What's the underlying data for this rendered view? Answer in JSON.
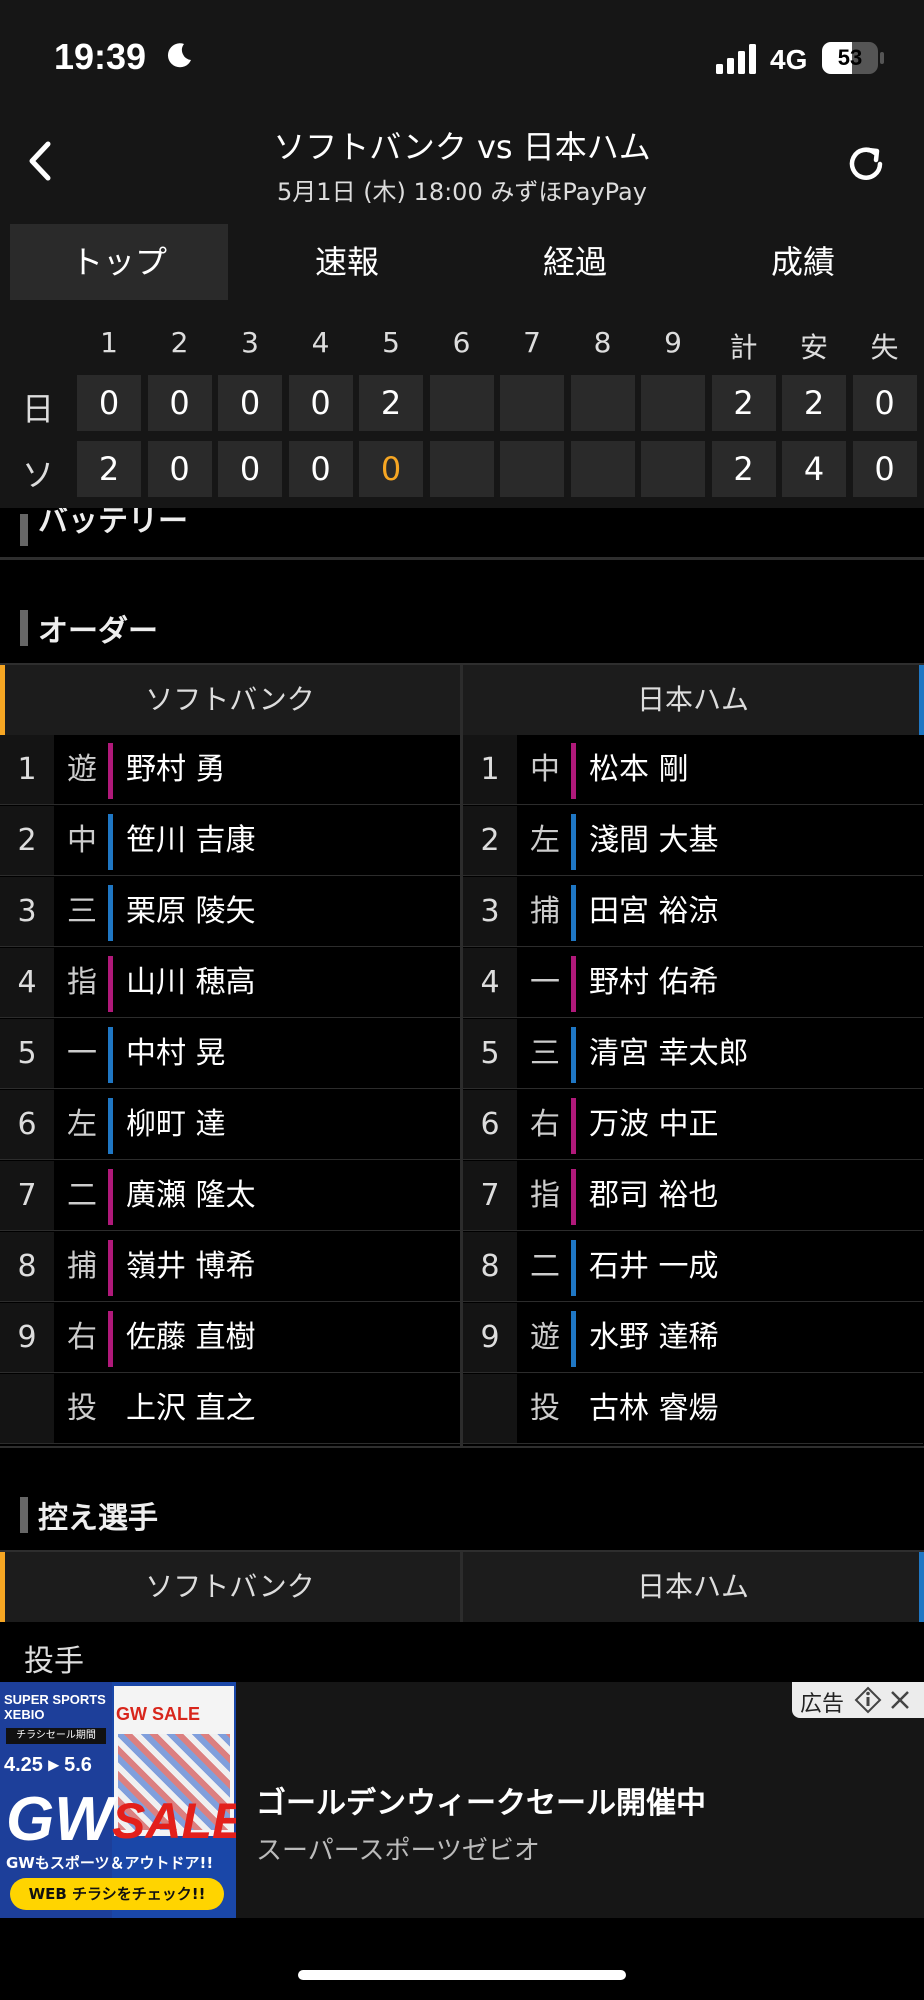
{
  "status": {
    "time": "19:39",
    "network": "4G",
    "battery": "53",
    "battery_level": 0.53
  },
  "header": {
    "title": "ソフトバンク vs 日本ハム",
    "subtitle": "5月1日 (木) 18:00 みずほPayPay"
  },
  "tabs": [
    "トップ",
    "速報",
    "経過",
    "成績"
  ],
  "scoreboard": {
    "columns": [
      "1",
      "2",
      "3",
      "4",
      "5",
      "6",
      "7",
      "8",
      "9",
      "計",
      "安",
      "失"
    ],
    "rows": [
      {
        "team": "日",
        "cells": [
          "0",
          "0",
          "0",
          "0",
          "2",
          "",
          "",
          "",
          "",
          "2",
          "2",
          "0"
        ]
      },
      {
        "team": "ソ",
        "cells": [
          "2",
          "0",
          "0",
          "0",
          "0",
          "",
          "",
          "",
          "",
          "2",
          "4",
          "0"
        ]
      }
    ]
  },
  "sections": {
    "battery": "バッテリー",
    "order": "オーダー",
    "reserves": "控え選手"
  },
  "teams": {
    "home": "ソフトバンク",
    "away": "日本ハム"
  },
  "lineup": {
    "home": [
      {
        "num": "1",
        "pos": "遊",
        "name": "野村 勇",
        "hand": "R"
      },
      {
        "num": "2",
        "pos": "中",
        "name": "笹川 吉康",
        "hand": "L"
      },
      {
        "num": "3",
        "pos": "三",
        "name": "栗原 陵矢",
        "hand": "L"
      },
      {
        "num": "4",
        "pos": "指",
        "name": "山川 穂高",
        "hand": "R"
      },
      {
        "num": "5",
        "pos": "一",
        "name": "中村 晃",
        "hand": "L"
      },
      {
        "num": "6",
        "pos": "左",
        "name": "柳町 達",
        "hand": "L"
      },
      {
        "num": "7",
        "pos": "二",
        "name": "廣瀬 隆太",
        "hand": "R"
      },
      {
        "num": "8",
        "pos": "捕",
        "name": "嶺井 博希",
        "hand": "R"
      },
      {
        "num": "9",
        "pos": "右",
        "name": "佐藤 直樹",
        "hand": "R"
      },
      {
        "num": "",
        "pos": "投",
        "name": "上沢 直之",
        "hand": ""
      }
    ],
    "away": [
      {
        "num": "1",
        "pos": "中",
        "name": "松本 剛",
        "hand": "R"
      },
      {
        "num": "2",
        "pos": "左",
        "name": "淺間 大基",
        "hand": "L"
      },
      {
        "num": "3",
        "pos": "捕",
        "name": "田宮 裕涼",
        "hand": "L"
      },
      {
        "num": "4",
        "pos": "一",
        "name": "野村 佑希",
        "hand": "R"
      },
      {
        "num": "5",
        "pos": "三",
        "name": "清宮 幸太郎",
        "hand": "L"
      },
      {
        "num": "6",
        "pos": "右",
        "name": "万波 中正",
        "hand": "R"
      },
      {
        "num": "7",
        "pos": "指",
        "name": "郡司 裕也",
        "hand": "R"
      },
      {
        "num": "8",
        "pos": "二",
        "name": "石井 一成",
        "hand": "L"
      },
      {
        "num": "9",
        "pos": "遊",
        "name": "水野 達稀",
        "hand": "L"
      },
      {
        "num": "",
        "pos": "投",
        "name": "古林 睿煬",
        "hand": ""
      }
    ]
  },
  "reserves": {
    "subheading": "投手"
  },
  "ad": {
    "label": "広告",
    "title": "ゴールデンウィークセール開催中",
    "sponsor": "スーパースポーツゼビオ",
    "image_texts": {
      "brand": "SUPER SPORTS XEBIO",
      "flyer": "チラシセール期間",
      "dates": "4.25 ▸ 5.6",
      "gw": "GW",
      "sale": "SALE",
      "slogan": "GWもスポーツ＆アウトドア!!",
      "cta": "WEB チラシをチェック!!",
      "small_gw": "GW SALE"
    }
  },
  "colors": {
    "right_hand": "#b0197a",
    "left_hand": "#1f77c4",
    "accent": "#f6a623"
  }
}
